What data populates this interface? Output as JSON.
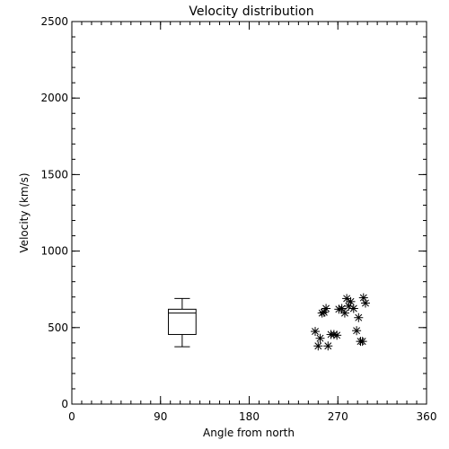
{
  "chart_data": {
    "type": "scatter",
    "title": "Velocity distribution",
    "xlabel": "Angle from north",
    "ylabel": "Velocity (km/s)",
    "xlim": [
      0,
      360
    ],
    "ylim": [
      0,
      2500
    ],
    "x_ticks": [
      0,
      90,
      180,
      270,
      360
    ],
    "x_tick_labels": [
      "0",
      "90",
      "180",
      "270",
      "360"
    ],
    "y_ticks": [
      0,
      500,
      1000,
      1500,
      2000,
      2500
    ],
    "y_tick_labels": [
      "0",
      "500",
      "1000",
      "1500",
      "2000",
      "2500"
    ],
    "x_minor_step": 10,
    "y_minor_step": 100,
    "grid": false,
    "boxplot": {
      "x": 112,
      "x_halfwidth": 14,
      "whisker_low": 375,
      "q1": 455,
      "median": 595,
      "q3": 620,
      "whisker_high": 690
    },
    "points": [
      {
        "x": 247,
        "y": 475
      },
      {
        "x": 250,
        "y": 380
      },
      {
        "x": 252,
        "y": 430
      },
      {
        "x": 254,
        "y": 595
      },
      {
        "x": 256,
        "y": 600
      },
      {
        "x": 258,
        "y": 625
      },
      {
        "x": 260,
        "y": 380
      },
      {
        "x": 263,
        "y": 455
      },
      {
        "x": 266,
        "y": 455
      },
      {
        "x": 269,
        "y": 450
      },
      {
        "x": 271,
        "y": 620
      },
      {
        "x": 274,
        "y": 625
      },
      {
        "x": 277,
        "y": 595
      },
      {
        "x": 279,
        "y": 690
      },
      {
        "x": 281,
        "y": 640
      },
      {
        "x": 283,
        "y": 670
      },
      {
        "x": 286,
        "y": 625
      },
      {
        "x": 289,
        "y": 480
      },
      {
        "x": 291,
        "y": 565
      },
      {
        "x": 293,
        "y": 410
      },
      {
        "x": 295,
        "y": 410
      },
      {
        "x": 296,
        "y": 695
      },
      {
        "x": 298,
        "y": 660
      }
    ]
  }
}
